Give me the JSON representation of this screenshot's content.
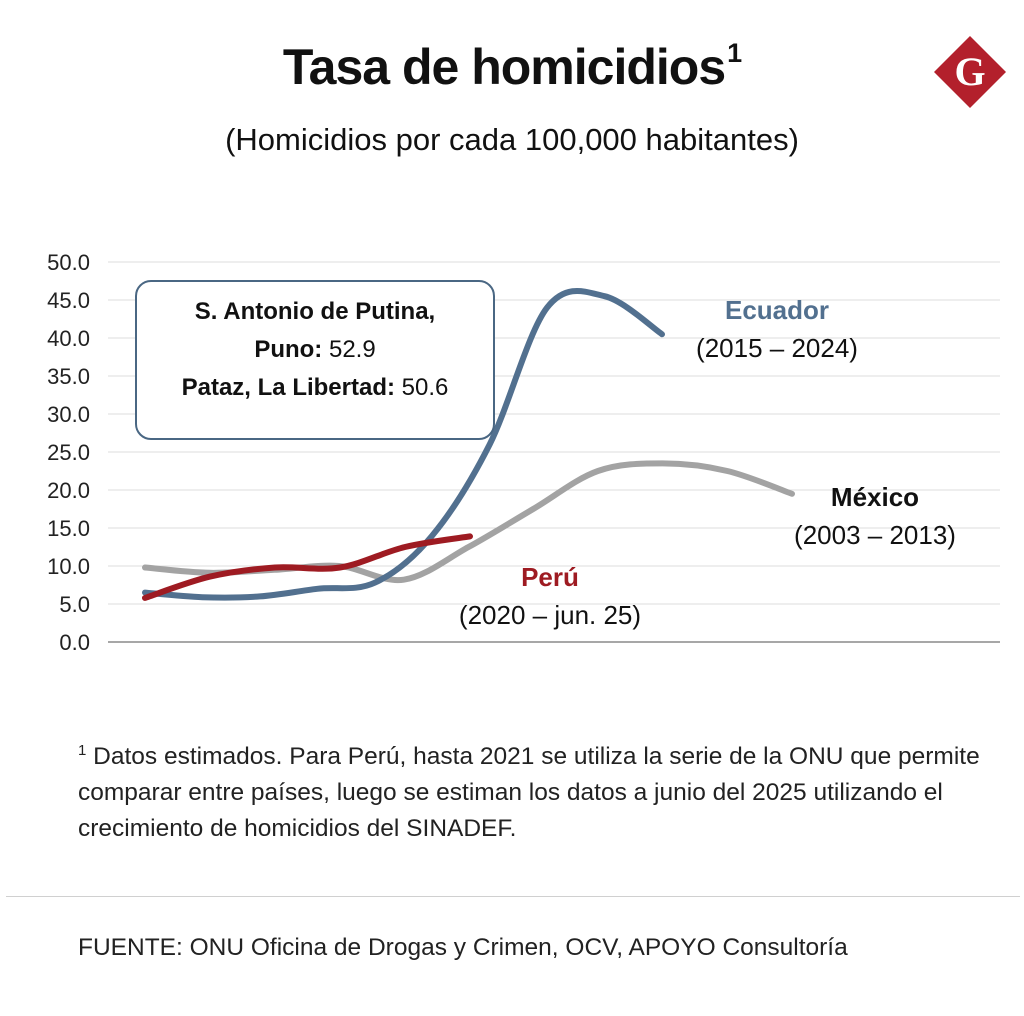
{
  "header": {
    "title": "Tasa de homicidios",
    "title_sup": "1",
    "subtitle": "(Homicidios por cada 100,000 habitantes)"
  },
  "logo": {
    "letter": "G",
    "color": "#b3202c",
    "icon": "diamond-g-logo"
  },
  "callout": {
    "line1": "S. Antonio de Putina,",
    "line2_bold": "Puno:",
    "line2_value": "52.9",
    "line3_bold": "Pataz, La Libertad:",
    "line3_value": "50.6"
  },
  "series_labels": {
    "ecuador": {
      "name": "Ecuador",
      "period": "(2015 – 2024)"
    },
    "mexico": {
      "name": "México",
      "period": "(2003 – 2013)"
    },
    "peru": {
      "name": "Perú",
      "period": "(2020 – jun. 25)"
    }
  },
  "footnote": {
    "sup": "1",
    "text": "Datos estimados. Para Perú, hasta 2021 se utiliza la serie de la ONU que permite comparar entre países, luego se estiman los datos a junio del 2025 utilizando el crecimiento de homicidios del SINADEF."
  },
  "source": "FUENTE:  ONU Oficina de Drogas y Crimen, OCV, APOYO Consultoría",
  "chart_data": {
    "type": "line",
    "title": "Tasa de homicidios",
    "subtitle": "(Homicidios por cada 100,000 habitantes)",
    "ylim": [
      0,
      50
    ],
    "yticks": [
      "0.0",
      "5.0",
      "10.0",
      "15.0",
      "20.0",
      "25.0",
      "30.0",
      "35.0",
      "40.0",
      "45.0",
      "50.0"
    ],
    "grid": true,
    "x_axis_labels": false,
    "series": [
      {
        "name": "México",
        "period": "(2003 – 2013)",
        "color": "#a3a3a3",
        "values": [
          9.8,
          9.1,
          9.5,
          10.0,
          8.2,
          12.5,
          17.5,
          22.5,
          23.5,
          22.5,
          19.5
        ]
      },
      {
        "name": "Ecuador",
        "period": "(2015 – 2024)",
        "color": "#52708f",
        "values": [
          6.5,
          5.9,
          6.0,
          7.0,
          7.8,
          14.0,
          26.0,
          44.0,
          45.5,
          40.5
        ]
      },
      {
        "name": "Perú",
        "period": "(2020 – jun. 25)",
        "color": "#9e1b22",
        "values": [
          5.8,
          8.6,
          9.8,
          9.8,
          12.5,
          13.9
        ]
      }
    ]
  }
}
